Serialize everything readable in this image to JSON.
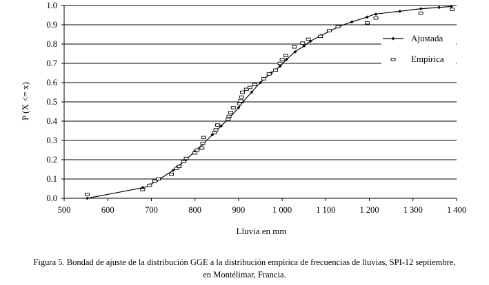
{
  "chart_data": {
    "type": "scatter",
    "title": "",
    "xlabel": "Lluvia en mm",
    "ylabel": "P (X <= x)",
    "xlim": [
      500,
      1400
    ],
    "ylim": [
      0.0,
      1.0
    ],
    "xticks": [
      500,
      600,
      700,
      800,
      900,
      1000,
      1100,
      1200,
      1300,
      1400
    ],
    "xtick_labels": [
      "500",
      "600",
      "700",
      "800",
      "900",
      "1 000",
      "1 100",
      "1 200",
      "1 300",
      "1 400"
    ],
    "yticks": [
      0.0,
      0.1,
      0.2,
      0.3,
      0.4,
      0.5,
      0.6,
      0.7,
      0.8,
      0.9,
      1.0
    ],
    "ytick_labels": [
      "0.0",
      "0.1",
      "0.2",
      "0.3",
      "0.4",
      "0.5",
      "0.6",
      "0.7",
      "0.8",
      "0.9",
      "1.0"
    ],
    "grid": "horizontal",
    "legend_position": "right",
    "series": [
      {
        "name": "Ajustada",
        "style": "line-diamond",
        "color": "#000000",
        "x": [
          553,
          680,
          696,
          712,
          750,
          760,
          780,
          800,
          818,
          840,
          860,
          880,
          900,
          910,
          930,
          950,
          975,
          995,
          1010,
          1030,
          1050,
          1065,
          1090,
          1130,
          1160,
          1195,
          1215,
          1270,
          1318,
          1360,
          1388
        ],
        "y": [
          0.0,
          0.055,
          0.07,
          0.09,
          0.145,
          0.165,
          0.2,
          0.245,
          0.28,
          0.33,
          0.375,
          0.42,
          0.47,
          0.5,
          0.55,
          0.6,
          0.65,
          0.685,
          0.72,
          0.76,
          0.79,
          0.815,
          0.845,
          0.89,
          0.915,
          0.94,
          0.955,
          0.97,
          0.983,
          0.99,
          0.995
        ]
      },
      {
        "name": "Empírica",
        "style": "open-rect",
        "color": "#000000",
        "x": [
          553,
          680,
          696,
          708,
          716,
          746,
          758,
          764,
          774,
          780,
          800,
          805,
          816,
          818,
          820,
          845,
          848,
          852,
          876,
          878,
          882,
          888,
          902,
          905,
          907,
          909,
          918,
          926,
          937,
          958,
          970,
          985,
          995,
          1000,
          1008,
          1028,
          1047,
          1060,
          1088,
          1108,
          1128,
          1195,
          1215,
          1318,
          1390
        ],
        "y": [
          0.02,
          0.045,
          0.067,
          0.09,
          0.1,
          0.125,
          0.155,
          0.165,
          0.19,
          0.207,
          0.235,
          0.25,
          0.26,
          0.285,
          0.315,
          0.34,
          0.355,
          0.38,
          0.41,
          0.425,
          0.445,
          0.47,
          0.49,
          0.505,
          0.525,
          0.55,
          0.565,
          0.575,
          0.59,
          0.62,
          0.645,
          0.665,
          0.7,
          0.72,
          0.74,
          0.785,
          0.805,
          0.825,
          0.84,
          0.87,
          0.89,
          0.91,
          0.935,
          0.96,
          0.98
        ]
      }
    ]
  },
  "caption": {
    "line1": "Figura 5. Bondad de ajuste de la distribución GGE a la distribución empírica de frecuencias de lluvias, SPI-12 septiembre,",
    "line2": "en Montélimar, Francia."
  }
}
